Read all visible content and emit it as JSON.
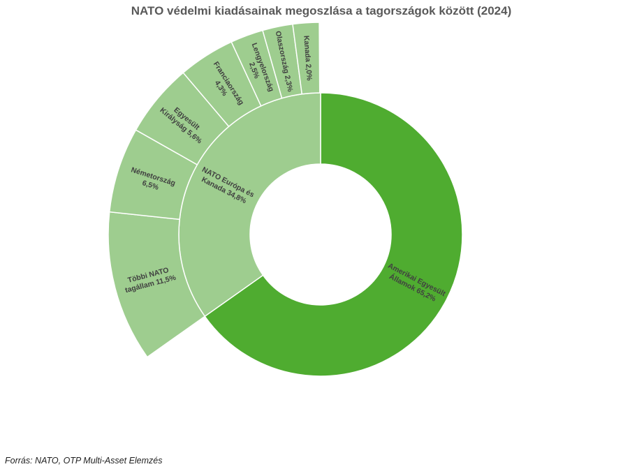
{
  "chart_data": {
    "type": "sunburst",
    "title": "NATO védelmi kiadásainak megoszlása a tagországok között (2024)",
    "source": "Forrás: NATO, OTP Multi-Asset Elemzés",
    "unit": "%",
    "colors": {
      "inner": "#4fac30",
      "outer": "#9ecd8f",
      "border": "#ffffff",
      "label": "#404040"
    },
    "inner": [
      {
        "name": "Amerikai Egyesült Államok",
        "value": 65.2,
        "label_lines": [
          "Amerikai Egyesült",
          "Államok 65,2%"
        ]
      },
      {
        "name": "NATO Európa és Kanada",
        "value": 34.8,
        "label_lines": [
          "NATO Európa és",
          "Kanada 34,8%"
        ]
      }
    ],
    "outer": [
      {
        "name": "Többi NATO tagállam",
        "value": 11.5,
        "label_lines": [
          "Többi NATO",
          "tagállam 11,5%"
        ]
      },
      {
        "name": "Németország",
        "value": 6.5,
        "label_lines": [
          "Németország",
          "6,5%"
        ]
      },
      {
        "name": "Egyesült Királyság",
        "value": 5.6,
        "label_lines": [
          "Egyesült",
          "Királyság 5,6%"
        ]
      },
      {
        "name": "Franciaország",
        "value": 4.3,
        "label_lines": [
          "Franciaország",
          "4,3%"
        ]
      },
      {
        "name": "Lengyelország",
        "value": 2.5,
        "label_lines": [
          "Lengyelország",
          "2,5%"
        ]
      },
      {
        "name": "Olaszország",
        "value": 2.3,
        "label_lines": [
          "Olaszország 2,3%"
        ]
      },
      {
        "name": "Kanada",
        "value": 2.0,
        "label_lines": [
          "Kanada 2,0%"
        ]
      }
    ]
  }
}
